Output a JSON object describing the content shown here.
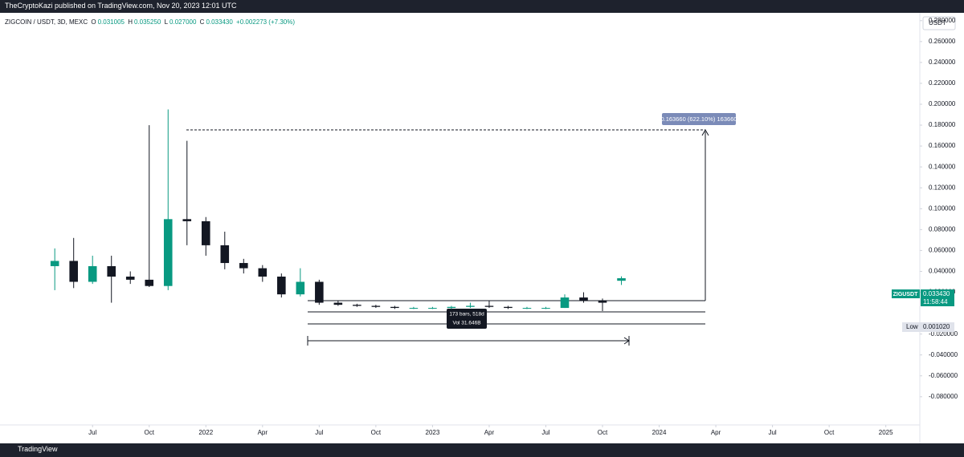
{
  "header": {
    "publisher": "TheCryptoKazi published on TradingView.com, Nov 20, 2023 12:01 UTC"
  },
  "legend": {
    "symbol": "ZIGCOIN / USDT, 3D, MEXC",
    "o_label": "O",
    "o": "0.031005",
    "h_label": "H",
    "h": "0.035250",
    "l_label": "L",
    "l": "0.027000",
    "c_label": "C",
    "c": "0.033430",
    "change": "+0.002273 (+7.30%)"
  },
  "price_axis": {
    "currency": "USDT",
    "ticker": "ZIGUSDT",
    "last": "0.033430",
    "countdown": "11:58:44",
    "low_label": "Low",
    "low": "0.001020"
  },
  "annotations": {
    "measure": "0.163660 (622.10%) 163660",
    "range": "173 bars, 518d",
    "volume": "Vol 31.646B"
  },
  "footer": {
    "brand": "TradingView"
  },
  "chart_data": {
    "type": "candlestick",
    "categories": [
      null,
      null,
      null,
      null,
      null,
      null,
      null,
      null,
      null,
      null,
      null,
      null,
      null,
      null,
      null,
      null,
      null,
      null,
      null,
      null,
      null,
      null,
      null,
      null,
      null,
      null,
      null,
      null,
      null,
      null,
      null
    ],
    "open": [
      0.045,
      0.05,
      0.03,
      0.045,
      0.035,
      0.032,
      0.026,
      0.09,
      0.088,
      0.065,
      0.048,
      0.043,
      0.035,
      0.018,
      0.03,
      0.01,
      0.008,
      0.007,
      0.006,
      0.005,
      0.005,
      0.005,
      0.006,
      0.007,
      0.006,
      0.005,
      0.005,
      0.005,
      0.015,
      0.012,
      0.031005
    ],
    "high": [
      0.062,
      0.072,
      0.055,
      0.055,
      0.04,
      0.18,
      0.195,
      0.165,
      0.092,
      0.078,
      0.052,
      0.046,
      0.038,
      0.043,
      0.032,
      0.012,
      0.009,
      0.008,
      0.007,
      0.006,
      0.006,
      0.007,
      0.01,
      0.012,
      0.007,
      0.006,
      0.006,
      0.018,
      0.02,
      0.014,
      0.03525
    ],
    "low": [
      0.022,
      0.024,
      0.028,
      0.01,
      0.028,
      0.025,
      0.022,
      0.065,
      0.055,
      0.042,
      0.038,
      0.03,
      0.015,
      0.016,
      0.008,
      0.007,
      0.006,
      0.005,
      0.004,
      0.004,
      0.004,
      0.004,
      0.005,
      0.005,
      0.004,
      0.004,
      0.004,
      0.005,
      0.01,
      0.002,
      0.027
    ],
    "close": [
      0.05,
      0.03,
      0.045,
      0.035,
      0.032,
      0.026,
      0.09,
      0.088,
      0.065,
      0.048,
      0.043,
      0.035,
      0.018,
      0.03,
      0.01,
      0.008,
      0.007,
      0.006,
      0.005,
      0.005,
      0.005,
      0.006,
      0.007,
      0.006,
      0.005,
      0.005,
      0.005,
      0.015,
      0.012,
      0.01,
      0.03343
    ],
    "color_up": "#089981",
    "color_down": "#131722",
    "xlim": [
      -2.9,
      45.8
    ],
    "ylim": [
      -0.107,
      0.2875
    ],
    "xticks": [
      {
        "value": 2,
        "label": "Jul"
      },
      {
        "value": 5,
        "label": "Oct"
      },
      {
        "value": 8,
        "label": "2022"
      },
      {
        "value": 11,
        "label": "Apr"
      },
      {
        "value": 14,
        "label": "Jul"
      },
      {
        "value": 17,
        "label": "Oct"
      },
      {
        "value": 20,
        "label": "2023"
      },
      {
        "value": 23,
        "label": "Apr"
      },
      {
        "value": 26,
        "label": "Jul"
      },
      {
        "value": 29,
        "label": "Oct"
      },
      {
        "value": 32,
        "label": "2024"
      },
      {
        "value": 35,
        "label": "Apr"
      },
      {
        "value": 38,
        "label": "Jul"
      },
      {
        "value": 41,
        "label": "Oct"
      },
      {
        "value": 44,
        "label": "2025"
      }
    ],
    "yticks": [
      {
        "value": 0.28,
        "label": "0.280000"
      },
      {
        "value": 0.26,
        "label": "0.260000"
      },
      {
        "value": 0.24,
        "label": "0.240000"
      },
      {
        "value": 0.22,
        "label": "0.220000"
      },
      {
        "value": 0.2,
        "label": "0.200000"
      },
      {
        "value": 0.18,
        "label": "0.180000"
      },
      {
        "value": 0.16,
        "label": "0.160000"
      },
      {
        "value": 0.14,
        "label": "0.140000"
      },
      {
        "value": 0.12,
        "label": "0.120000"
      },
      {
        "value": 0.1,
        "label": "0.100000"
      },
      {
        "value": 0.08,
        "label": "0.080000"
      },
      {
        "value": 0.06,
        "label": "0.060000"
      },
      {
        "value": 0.04,
        "label": "0.040000"
      },
      {
        "value": 0.02,
        "label": "0.020000"
      },
      {
        "value": -0.02,
        "label": "-0.020000"
      },
      {
        "value": -0.04,
        "label": "-0.040000"
      },
      {
        "value": -0.06,
        "label": "-0.060000"
      },
      {
        "value": -0.08,
        "label": "-0.080000"
      }
    ]
  }
}
